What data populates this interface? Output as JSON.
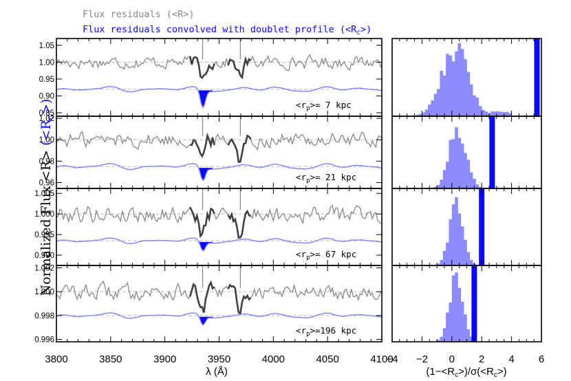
{
  "legend": {
    "gray_label": "Flux residuals (<R>)",
    "blue_label_prefix": "Flux residuals convolved with doublet profile (<R",
    "blue_label_sub": "c",
    "blue_label_suffix": ">)"
  },
  "ylabel": {
    "part1": "Normalized Flux <R> ",
    "part2_prefix": "(<R",
    "part2_sub": "c",
    "part2_suffix": ">)"
  },
  "colors": {
    "gray": "#888888",
    "dark": "#404040",
    "blue": "#0a0af5",
    "lightblue": "#8080ff",
    "histfill": "#8c8cff",
    "dashed": "#bbbbbb"
  },
  "chart_data": [
    {
      "type": "line",
      "name": "spectrum-panels",
      "xlabel": "λ (Å)",
      "xlim": [
        3800,
        4100
      ],
      "xticks": [
        "3800",
        "3850",
        "3900",
        "3950",
        "4000",
        "4050",
        "4100"
      ],
      "xtick_values": [
        3800,
        3850,
        3900,
        3950,
        4000,
        4050,
        4100
      ],
      "line_markers": [
        3934.8,
        3969.6
      ],
      "panels": [
        {
          "label_prefix": "<r",
          "label_sub": "p",
          "label_value": ">=  7 kpc",
          "ylim": [
            0.84,
            1.07
          ],
          "yticks": [
            "1.05",
            "1.00",
            "0.95",
            "0.90",
            "0.85"
          ],
          "ytick_values": [
            1.05,
            1.0,
            0.95,
            0.9,
            0.85
          ],
          "gray_level": 1.0,
          "gray_amp": 0.022,
          "blue_level": 0.92,
          "blue_amp": 0.007,
          "blue_dip": 0.055
        },
        {
          "label_prefix": "<r",
          "label_sub": "p",
          "label_value": ">= 21 kpc",
          "ylim": [
            0.9545,
            1.022
          ],
          "yticks": [
            "1.02",
            "1.00",
            "0.98",
            "0.96"
          ],
          "ytick_values": [
            1.02,
            1.0,
            0.98,
            0.96
          ],
          "gray_level": 1.0,
          "gray_amp": 0.0085,
          "blue_level": 0.975,
          "blue_amp": 0.0025,
          "blue_dip": 0.013
        },
        {
          "label_prefix": "<r",
          "label_sub": "p",
          "label_value": ">= 67 kpc",
          "ylim": [
            0.9875,
            1.0062
          ],
          "yticks": [
            "1.005",
            "1.000",
            "0.995",
            "0.990"
          ],
          "ytick_values": [
            1.005,
            1.0,
            0.995,
            0.99
          ],
          "gray_level": 1.0,
          "gray_amp": 0.0024,
          "blue_level": 0.9935,
          "blue_amp": 0.0006,
          "blue_dip": 0.0025
        },
        {
          "label_prefix": "<r",
          "label_sub": "p",
          "label_value": ">=196 kpc",
          "ylim": [
            0.9958,
            1.0022
          ],
          "yticks": [
            "1.002",
            "1.000",
            "0.998",
            "0.996"
          ],
          "ytick_values": [
            1.002,
            1.0,
            0.998,
            0.996
          ],
          "gray_level": 1.0,
          "gray_amp": 0.0008,
          "blue_level": 0.998,
          "blue_amp": 0.0002,
          "blue_dip": 0.0008
        }
      ]
    },
    {
      "type": "bar",
      "name": "significance-histograms",
      "xlabel_prefix": "(1−<R",
      "xlabel_sub1": "c",
      "xlabel_mid": ">)/σ(<R",
      "xlabel_sub2": "c",
      "xlabel_suffix": ">)",
      "xlim": [
        -4,
        6
      ],
      "xticks": [
        "−4",
        "−2",
        "0",
        "2",
        "4",
        "6"
      ],
      "xtick_values": [
        -4,
        -2,
        0,
        2,
        4,
        6
      ],
      "bin_width": 0.2,
      "panels": [
        {
          "marker_x": 5.7,
          "peak_center": 0.2,
          "peak_sigma": 0.9,
          "tail": true
        },
        {
          "marker_x": 2.7,
          "peak_center": 0.4,
          "peak_sigma": 0.55,
          "tail": false
        },
        {
          "marker_x": 2.0,
          "peak_center": 0.3,
          "peak_sigma": 0.45,
          "tail": false
        },
        {
          "marker_x": 1.5,
          "peak_center": 0.3,
          "peak_sigma": 0.45,
          "tail": false
        }
      ]
    }
  ]
}
